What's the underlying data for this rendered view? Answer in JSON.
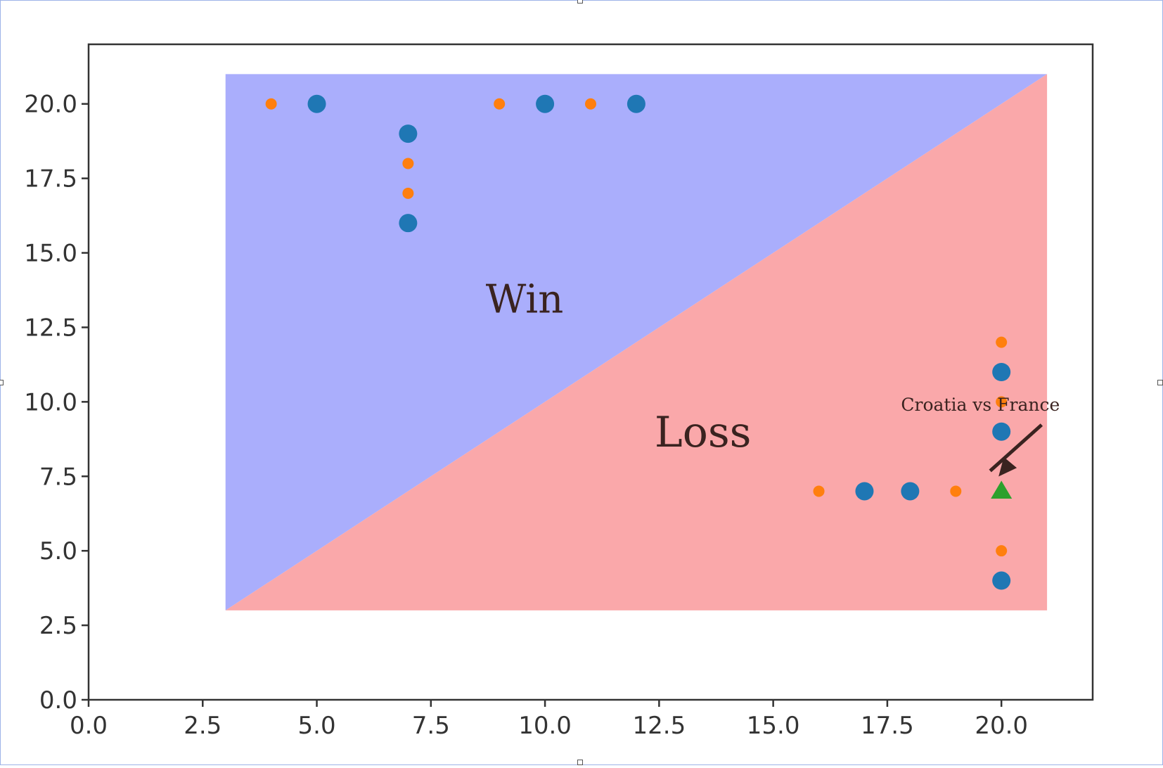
{
  "chart_data": {
    "type": "scatter",
    "title": "",
    "xlabel": "",
    "ylabel": "",
    "xlim": [
      0,
      22
    ],
    "ylim": [
      0,
      22
    ],
    "xticks": [
      "0.0",
      "2.5",
      "5.0",
      "7.5",
      "10.0",
      "12.5",
      "15.0",
      "17.5",
      "20.0"
    ],
    "yticks": [
      "0.0",
      "2.5",
      "5.0",
      "7.5",
      "10.0",
      "12.5",
      "15.0",
      "17.5",
      "20.0"
    ],
    "grid": false,
    "regions": [
      {
        "label": "Win",
        "color": "#aaaefc",
        "vertices": [
          [
            3,
            3
          ],
          [
            3,
            21
          ],
          [
            21,
            21
          ]
        ]
      },
      {
        "label": "Loss",
        "color": "#faa8aa",
        "vertices": [
          [
            3,
            3
          ],
          [
            21,
            21
          ],
          [
            21,
            3
          ]
        ]
      }
    ],
    "series": [
      {
        "color": "#1f77b4",
        "marker": "circle-large",
        "points": [
          [
            5,
            20
          ],
          [
            10,
            20
          ],
          [
            12,
            20
          ],
          [
            7,
            19
          ],
          [
            7,
            16
          ],
          [
            20,
            11
          ],
          [
            20,
            9
          ],
          [
            17,
            7
          ],
          [
            18,
            7
          ],
          [
            20,
            4
          ]
        ]
      },
      {
        "color": "#ff7f0e",
        "marker": "circle-small",
        "points": [
          [
            4,
            20
          ],
          [
            9,
            20
          ],
          [
            11,
            20
          ],
          [
            7,
            18
          ],
          [
            7,
            17
          ],
          [
            20,
            12
          ],
          [
            20,
            10
          ],
          [
            16,
            7
          ],
          [
            19,
            7
          ],
          [
            20,
            5
          ]
        ]
      },
      {
        "color": "#2ca02c",
        "marker": "triangle",
        "points": [
          [
            20,
            7
          ]
        ]
      }
    ],
    "annotations": [
      {
        "text": "Win",
        "x": 8.7,
        "y": 13
      },
      {
        "text": "Loss",
        "x": 12.4,
        "y": 8.5
      },
      {
        "text": "Croatia vs France",
        "x": 17.8,
        "y": 9.7,
        "arrow_to": [
          20,
          7.4
        ]
      }
    ],
    "colors": {
      "axis": "#333333",
      "arrow": "#3a2320"
    }
  }
}
